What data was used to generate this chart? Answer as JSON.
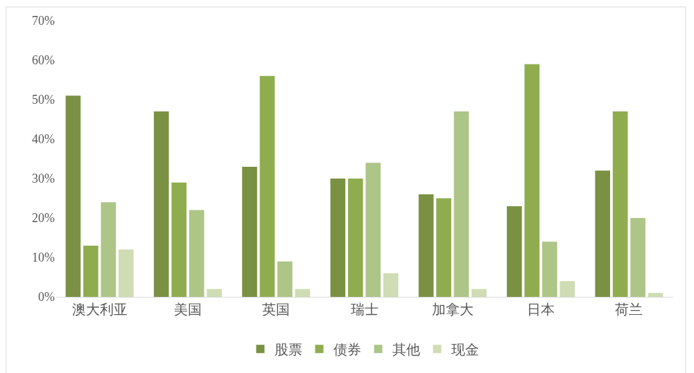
{
  "chart_data": {
    "type": "bar",
    "categories": [
      "澳大利亚",
      "美国",
      "英国",
      "瑞士",
      "加拿大",
      "日本",
      "荷兰"
    ],
    "series": [
      {
        "name": "股票",
        "color": "#7a9144",
        "values": [
          51,
          47,
          33,
          30,
          26,
          23,
          32
        ]
      },
      {
        "name": "债券",
        "color": "#8fad4f",
        "values": [
          13,
          29,
          56,
          30,
          25,
          59,
          47
        ]
      },
      {
        "name": "其他",
        "color": "#adc587",
        "values": [
          24,
          22,
          9,
          34,
          47,
          14,
          20
        ]
      },
      {
        "name": "现金",
        "color": "#cfdcb4",
        "values": [
          12,
          2,
          2,
          6,
          2,
          4,
          1
        ]
      }
    ],
    "ylim": [
      0,
      70
    ],
    "yticks": [
      {
        "value": 0,
        "label": "0%"
      },
      {
        "value": 10,
        "label": "10%"
      },
      {
        "value": 20,
        "label": "20%"
      },
      {
        "value": 30,
        "label": "30%"
      },
      {
        "value": 40,
        "label": "40%"
      },
      {
        "value": 50,
        "label": "50%"
      },
      {
        "value": 60,
        "label": "60%"
      },
      {
        "value": 70,
        "label": "70%"
      }
    ],
    "grid": false,
    "legend": "bottom"
  }
}
